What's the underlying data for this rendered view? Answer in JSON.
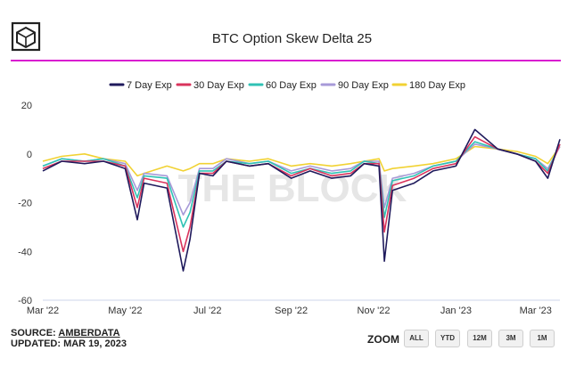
{
  "brand": {
    "logo_icon": "the-block-cube-icon",
    "watermark": "THE BLOCK"
  },
  "colors": {
    "accent": "#d91cd0",
    "series": [
      "#1f1a5c",
      "#d9335c",
      "#2fc2b4",
      "#a79ad8",
      "#f1d233"
    ]
  },
  "footer": {
    "source_prefix": "SOURCE: ",
    "source_name": "AMBERDATA",
    "updated": "UPDATED: MAR 19, 2023"
  },
  "zoom": {
    "label": "ZOOM",
    "buttons": [
      "ALL",
      "YTD",
      "12M",
      "3M",
      "1M"
    ]
  },
  "chart_data": {
    "type": "line",
    "title": "BTC Option Skew Delta 25",
    "xlabel": "",
    "ylabel": "",
    "ylim": [
      -60,
      20
    ],
    "yticks": [
      20,
      0,
      -20,
      -40,
      -60
    ],
    "xlim": [
      "2022-03-01",
      "2023-03-19"
    ],
    "xticks": [
      "Mar '22",
      "May '22",
      "Jul '22",
      "Sep '22",
      "Nov '22",
      "Jan '23",
      "Mar '23"
    ],
    "xtick_dates": [
      "2022-03-01",
      "2022-05-01",
      "2022-07-01",
      "2022-09-01",
      "2022-11-01",
      "2023-01-01",
      "2023-03-01"
    ],
    "legend_position": "top-center",
    "grid": false,
    "x": [
      "2022-03-01",
      "2022-03-15",
      "2022-04-01",
      "2022-04-15",
      "2022-05-01",
      "2022-05-10",
      "2022-05-15",
      "2022-06-01",
      "2022-06-13",
      "2022-06-18",
      "2022-06-25",
      "2022-07-05",
      "2022-07-15",
      "2022-08-01",
      "2022-08-15",
      "2022-09-01",
      "2022-09-15",
      "2022-10-01",
      "2022-10-15",
      "2022-10-25",
      "2022-11-05",
      "2022-11-09",
      "2022-11-15",
      "2022-12-01",
      "2022-12-15",
      "2023-01-01",
      "2023-01-15",
      "2023-02-01",
      "2023-02-15",
      "2023-03-01",
      "2023-03-10",
      "2023-03-19"
    ],
    "series": [
      {
        "name": "7 Day Exp",
        "values": [
          -7,
          -3,
          -4,
          -3,
          -6,
          -27,
          -12,
          -14,
          -48,
          -35,
          -8,
          -9,
          -3,
          -5,
          -4,
          -10,
          -7,
          -10,
          -9,
          -4,
          -5,
          -44,
          -15,
          -12,
          -7,
          -5,
          10,
          2,
          0,
          -3,
          -10,
          6
        ]
      },
      {
        "name": "30 Day Exp",
        "values": [
          -6,
          -3,
          -3,
          -3,
          -5,
          -22,
          -10,
          -12,
          -40,
          -30,
          -8,
          -8,
          -3,
          -5,
          -4,
          -9,
          -6,
          -9,
          -8,
          -4,
          -4,
          -32,
          -13,
          -10,
          -6,
          -4,
          7,
          2,
          0,
          -3,
          -8,
          4
        ]
      },
      {
        "name": "60 Day Exp",
        "values": [
          -5,
          -2,
          -3,
          -2,
          -5,
          -18,
          -9,
          -10,
          -30,
          -24,
          -7,
          -7,
          -3,
          -4,
          -3,
          -8,
          -6,
          -8,
          -7,
          -3,
          -4,
          -26,
          -11,
          -9,
          -5,
          -3,
          5,
          2,
          0,
          -2,
          -7,
          4
        ]
      },
      {
        "name": "90 Day Exp",
        "values": [
          -5,
          -2,
          -3,
          -2,
          -4,
          -15,
          -8,
          -9,
          -25,
          -20,
          -6,
          -6,
          -2,
          -4,
          -3,
          -7,
          -5,
          -7,
          -6,
          -3,
          -3,
          -22,
          -10,
          -8,
          -5,
          -3,
          4,
          2,
          0,
          -2,
          -6,
          3
        ]
      },
      {
        "name": "180 Day Exp",
        "values": [
          -3,
          -1,
          0,
          -2,
          -3,
          -9,
          -8,
          -5,
          -7,
          -6,
          -4,
          -4,
          -2,
          -3,
          -2,
          -5,
          -4,
          -5,
          -4,
          -3,
          -2,
          -7,
          -6,
          -5,
          -4,
          -2,
          3,
          2,
          1,
          -1,
          -4,
          3
        ]
      }
    ]
  }
}
